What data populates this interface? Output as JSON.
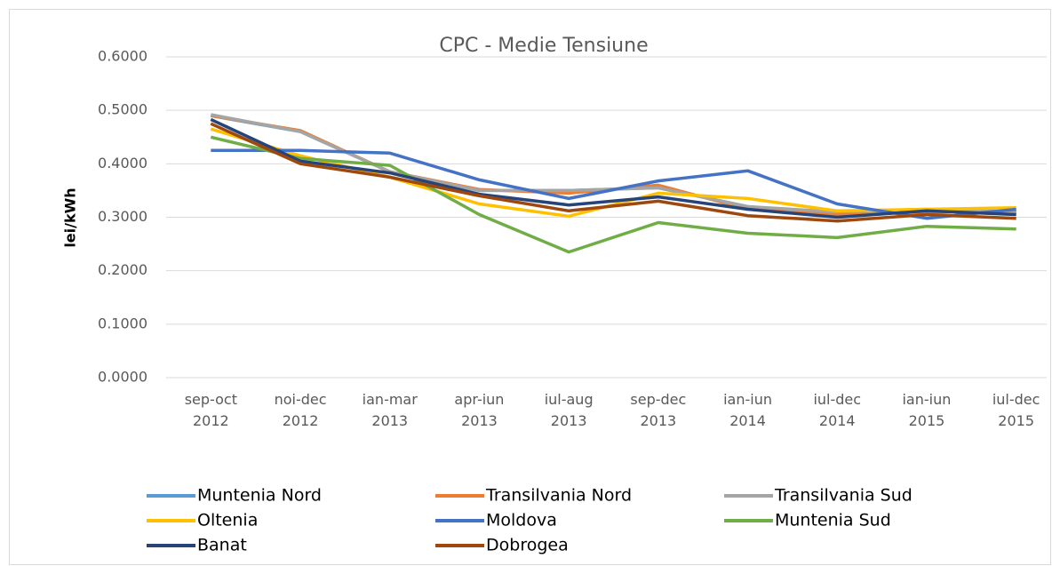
{
  "chart_data": {
    "type": "line",
    "title": "CPC - Medie Tensiune",
    "y_label": "lei/kWh",
    "categories": [
      "sep-oct 2012",
      "noi-dec 2012",
      "ian-mar 2013",
      "apr-iun 2013",
      "iul-aug 2013",
      "sep-dec 2013",
      "ian-iun 2014",
      "iul-dec 2014",
      "ian-iun 2015",
      "iul-dec 2015"
    ],
    "series": [
      {
        "name": "Muntenia Nord",
        "color": "#5b9bd5",
        "values": [
          0.49,
          0.46,
          0.385,
          0.35,
          0.35,
          0.355,
          0.32,
          0.305,
          0.31,
          0.31
        ]
      },
      {
        "name": "Transilvania Nord",
        "color": "#ed7d31",
        "values": [
          0.49,
          0.462,
          0.385,
          0.352,
          0.345,
          0.36,
          0.315,
          0.305,
          0.31,
          0.31
        ]
      },
      {
        "name": "Transilvania Sud",
        "color": "#a5a5a5",
        "values": [
          0.492,
          0.46,
          0.385,
          0.35,
          0.35,
          0.355,
          0.32,
          0.31,
          0.315,
          0.31
        ]
      },
      {
        "name": "Oltenia",
        "color": "#ffc000",
        "values": [
          0.465,
          0.415,
          0.375,
          0.325,
          0.302,
          0.345,
          0.335,
          0.312,
          0.315,
          0.318
        ]
      },
      {
        "name": "Moldova",
        "color": "#4472c4",
        "values": [
          0.425,
          0.425,
          0.42,
          0.37,
          0.335,
          0.368,
          0.387,
          0.325,
          0.298,
          0.315
        ]
      },
      {
        "name": "Muntenia Sud",
        "color": "#70ad47",
        "values": [
          0.45,
          0.41,
          0.397,
          0.305,
          0.235,
          0.29,
          0.27,
          0.262,
          0.283,
          0.278
        ]
      },
      {
        "name": "Banat",
        "color": "#264478",
        "values": [
          0.483,
          0.405,
          0.383,
          0.343,
          0.323,
          0.338,
          0.315,
          0.3,
          0.312,
          0.305
        ]
      },
      {
        "name": "Dobrogea",
        "color": "#9e480e",
        "values": [
          0.475,
          0.4,
          0.375,
          0.34,
          0.312,
          0.33,
          0.303,
          0.293,
          0.305,
          0.298
        ]
      }
    ],
    "ylim": [
      0,
      0.6
    ],
    "yticks": [
      {
        "value": 0,
        "label": "0.0000"
      },
      {
        "value": 0.1,
        "label": "0.1000"
      },
      {
        "value": 0.2,
        "label": "0.2000"
      },
      {
        "value": 0.3,
        "label": "0.3000"
      },
      {
        "value": 0.4,
        "label": "0.4000"
      },
      {
        "value": 0.5,
        "label": "0.5000"
      },
      {
        "value": 0.6,
        "label": "0.6000"
      }
    ],
    "grid": true,
    "legend": "bottom"
  }
}
